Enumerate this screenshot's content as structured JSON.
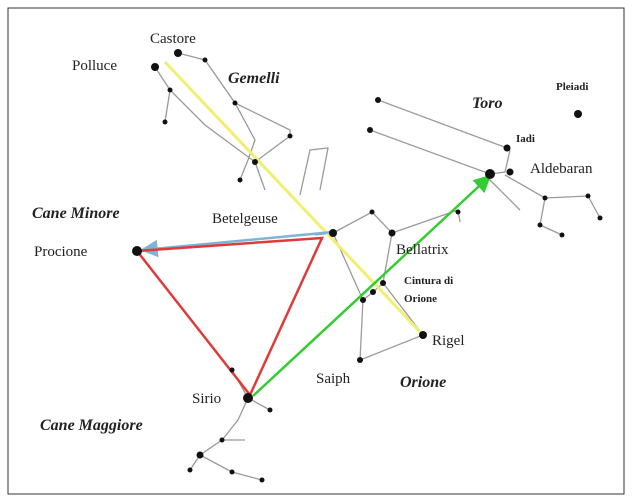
{
  "labels": {
    "castore": "Castore",
    "polluce": "Polluce",
    "gemelli": "Gemelli",
    "toro": "Toro",
    "pleiadi": "Pleiadi",
    "iadi": "Iadi",
    "aldebaran": "Aldebaran",
    "cane_minore": "Cane Minore",
    "betelgeuse": "Betelgeuse",
    "procione": "Procione",
    "bellatrix": "Bellatrix",
    "cintura_1": "Cintura di",
    "cintura_2": "Orione",
    "rigel": "Rigel",
    "saiph": "Saiph",
    "orione": "Orione",
    "sirio": "Sirio",
    "cane_maggiore": "Cane Maggiore"
  }
}
